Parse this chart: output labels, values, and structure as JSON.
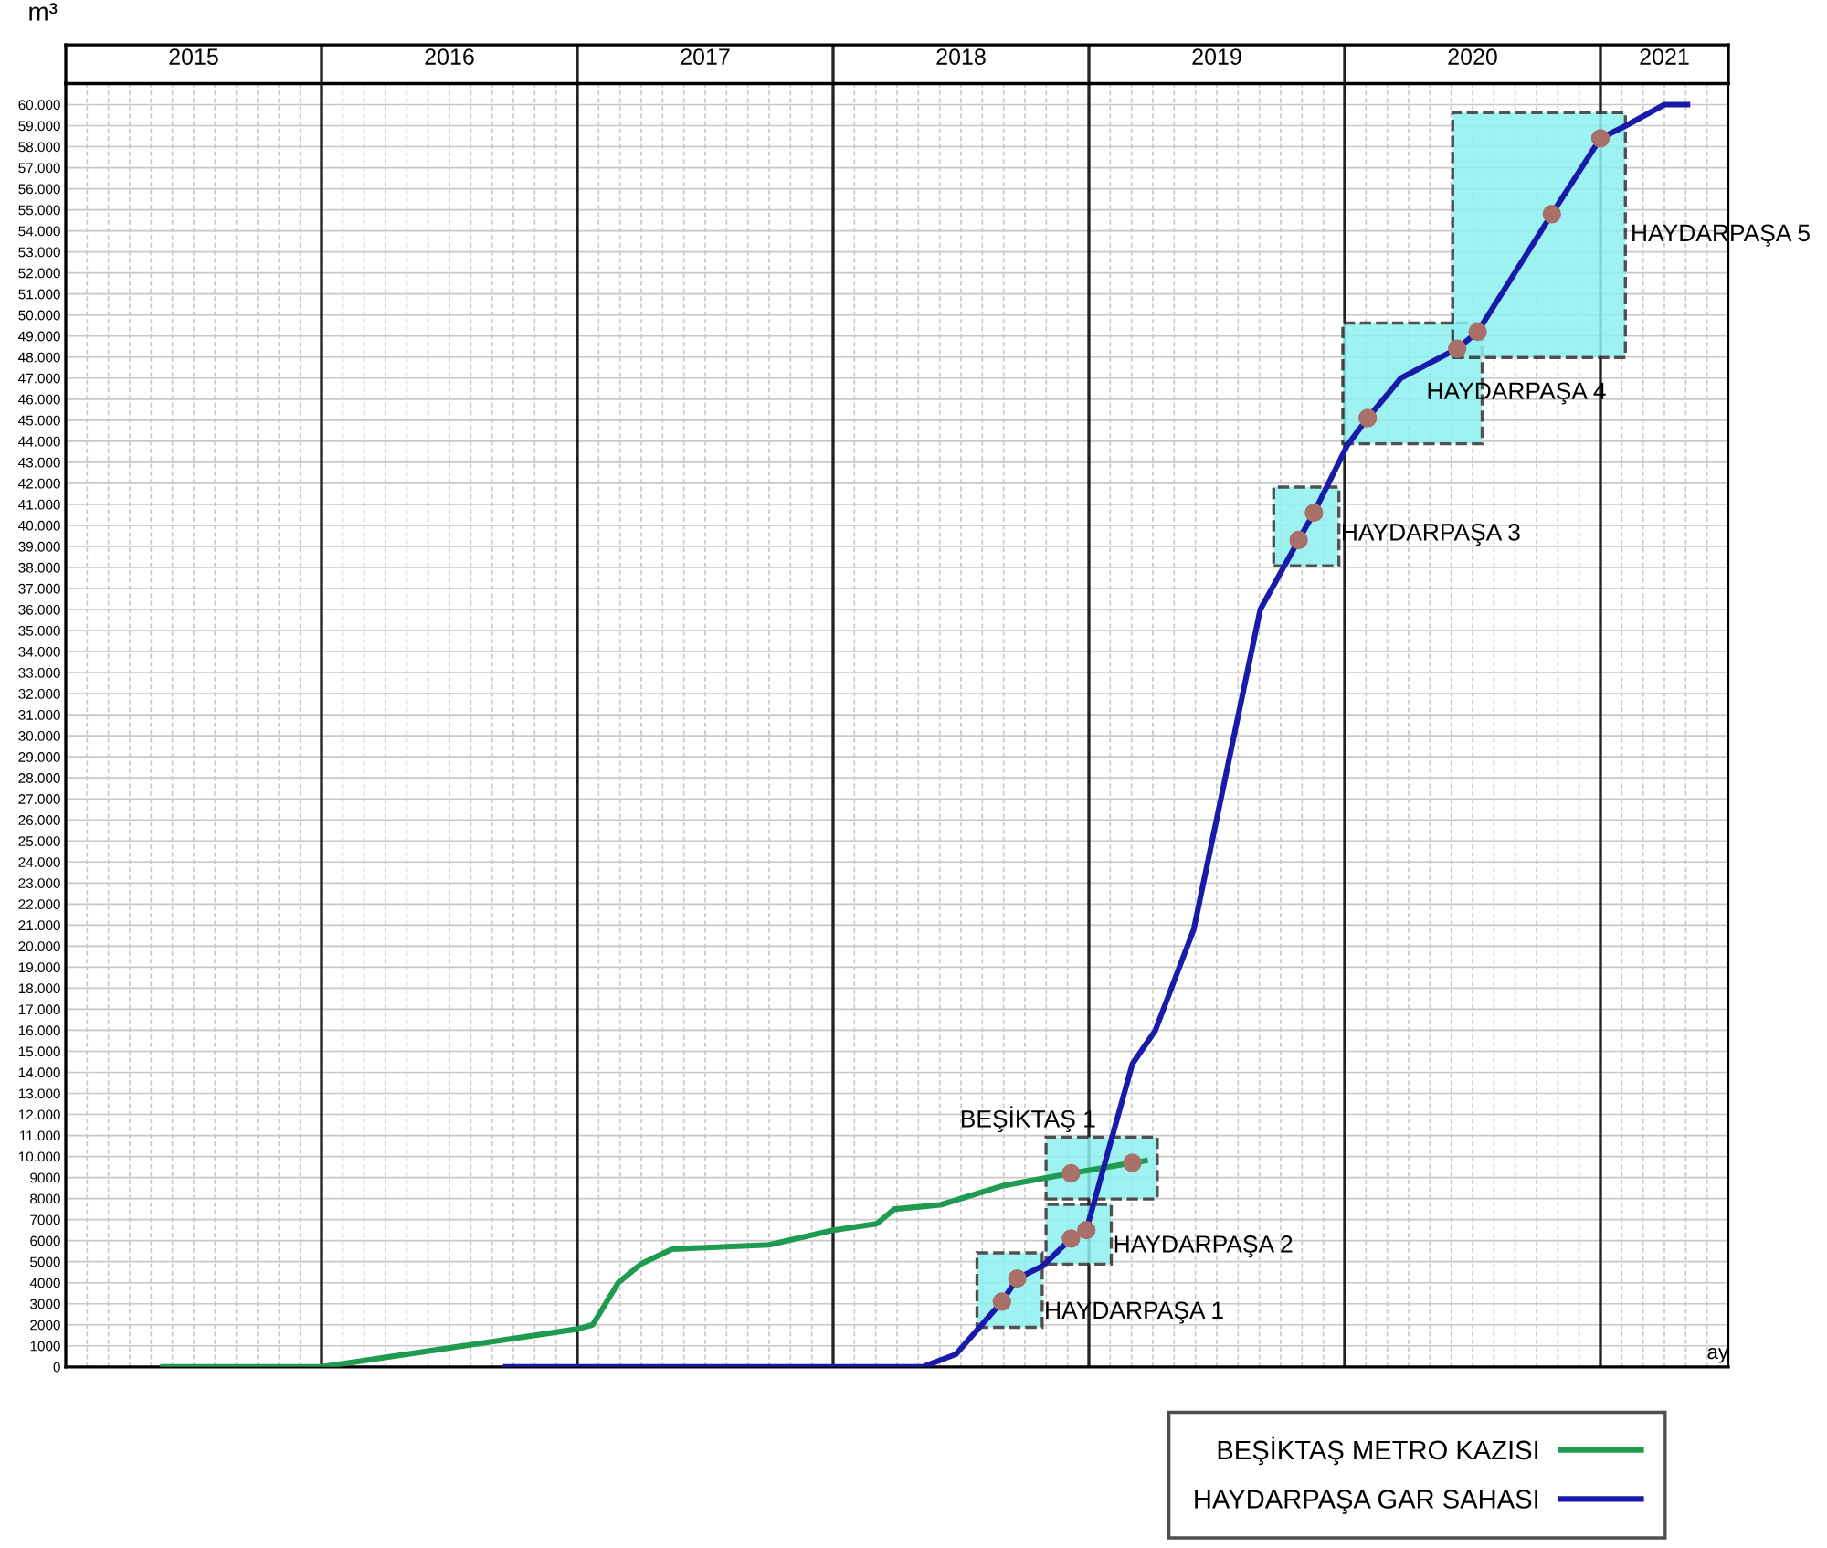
{
  "chart_data": {
    "type": "line",
    "xlabel": "ay",
    "ylabel": "m³",
    "xlim": [
      2015,
      2021.5
    ],
    "xticks": [
      {
        "value": 2015.5,
        "label": "2015"
      },
      {
        "value": 2016.5,
        "label": "2016"
      },
      {
        "value": 2017.5,
        "label": "2017"
      },
      {
        "value": 2018.5,
        "label": "2018"
      },
      {
        "value": 2019.5,
        "label": "2019"
      },
      {
        "value": 2020.5,
        "label": "2020"
      },
      {
        "value": 2021.25,
        "label": "2021"
      }
    ],
    "ylim": [
      0,
      61000
    ],
    "yticks": [
      0,
      1000,
      2000,
      3000,
      4000,
      5000,
      6000,
      7000,
      8000,
      9000,
      {
        "value": 10000,
        "label": "10.000"
      },
      {
        "value": 11000,
        "label": "11.000"
      },
      {
        "value": 12000,
        "label": "12.000"
      },
      {
        "value": 13000,
        "label": "13.000"
      },
      {
        "value": 14000,
        "label": "14.000"
      },
      {
        "value": 15000,
        "label": "15.000"
      },
      {
        "value": 16000,
        "label": "16.000"
      },
      {
        "value": 17000,
        "label": "17.000"
      },
      {
        "value": 18000,
        "label": "18.000"
      },
      {
        "value": 19000,
        "label": "19.000"
      },
      {
        "value": 20000,
        "label": "20.000"
      },
      {
        "value": 21000,
        "label": "21.000"
      },
      {
        "value": 22000,
        "label": "22.000"
      },
      {
        "value": 23000,
        "label": "23.000"
      },
      {
        "value": 24000,
        "label": "24.000"
      },
      {
        "value": 25000,
        "label": "25.000"
      },
      {
        "value": 26000,
        "label": "26.000"
      },
      {
        "value": 27000,
        "label": "27.000"
      },
      {
        "value": 28000,
        "label": "28.000"
      },
      {
        "value": 29000,
        "label": "29.000"
      },
      {
        "value": 30000,
        "label": "30.000"
      },
      {
        "value": 31000,
        "label": "31.000"
      },
      {
        "value": 32000,
        "label": "32.000"
      },
      {
        "value": 33000,
        "label": "33.000"
      },
      {
        "value": 34000,
        "label": "34.000"
      },
      {
        "value": 35000,
        "label": "35.000"
      },
      {
        "value": 36000,
        "label": "36.000"
      },
      {
        "value": 37000,
        "label": "37.000"
      },
      {
        "value": 38000,
        "label": "38.000"
      },
      {
        "value": 39000,
        "label": "39.000"
      },
      {
        "value": 40000,
        "label": "40.000"
      },
      {
        "value": 41000,
        "label": "41.000"
      },
      {
        "value": 42000,
        "label": "42.000"
      },
      {
        "value": 43000,
        "label": "43.000"
      },
      {
        "value": 44000,
        "label": "44.000"
      },
      {
        "value": 45000,
        "label": "45.000"
      },
      {
        "value": 46000,
        "label": "46.000"
      },
      {
        "value": 47000,
        "label": "47.000"
      },
      {
        "value": 48000,
        "label": "48.000"
      },
      {
        "value": 49000,
        "label": "49.000"
      },
      {
        "value": 50000,
        "label": "50.000"
      },
      {
        "value": 51000,
        "label": "51.000"
      },
      {
        "value": 52000,
        "label": "52.000"
      },
      {
        "value": 53000,
        "label": "53.000"
      },
      {
        "value": 54000,
        "label": "54.000"
      },
      {
        "value": 55000,
        "label": "55.000"
      },
      {
        "value": 56000,
        "label": "56.000"
      },
      {
        "value": 57000,
        "label": "57.000"
      },
      {
        "value": 58000,
        "label": "58.000"
      },
      {
        "value": 59000,
        "label": "59.000"
      },
      {
        "value": 60000,
        "label": "60.000"
      }
    ],
    "grid": true,
    "legend": "bottom right",
    "line_style": "solid",
    "ref_lines": [
      {
        "axis": "x",
        "value": 2016
      },
      {
        "axis": "x",
        "value": 2017
      },
      {
        "axis": "x",
        "value": 2018
      },
      {
        "axis": "x",
        "value": 2019
      },
      {
        "axis": "x",
        "value": 2020
      },
      {
        "axis": "x",
        "value": 2021
      }
    ],
    "series": [
      {
        "name": "BEŞİKTAŞ METRO KAZISI",
        "color": "#1e9b50",
        "x": [
          2015.38,
          2016.0,
          2017.0,
          2017.06,
          2017.16,
          2017.25,
          2017.37,
          2017.75,
          2018.0,
          2018.17,
          2018.24,
          2018.42,
          2018.66,
          2018.93,
          2019.17,
          2019.22
        ],
        "values": [
          0,
          0,
          1800,
          2000,
          4000,
          4900,
          5600,
          5800,
          6500,
          6800,
          7500,
          7700,
          8600,
          9200,
          9700,
          9800
        ]
      },
      {
        "name": "HAYDARPAŞA GAR SAHASI",
        "color": "#1a1aaa",
        "x": [
          2016.72,
          2018.35,
          2018.48,
          2018.66,
          2018.72,
          2018.82,
          2018.93,
          2018.99,
          2019.17,
          2019.26,
          2019.41,
          2019.67,
          2019.82,
          2019.88,
          2020.01,
          2020.09,
          2020.22,
          2020.44,
          2020.52,
          2020.81,
          2021.0,
          2021.1,
          2021.25,
          2021.34
        ],
        "values": [
          0,
          0,
          600,
          3100,
          4200,
          4800,
          6100,
          6500,
          14400,
          16000,
          20800,
          36000,
          39300,
          40600,
          43800,
          45100,
          47000,
          48400,
          49200,
          54800,
          58400,
          59000,
          60000,
          60000
        ]
      },
      {
        "type": "scatter",
        "color": "#a87068",
        "x": [
          2018.93,
          2019.17
        ],
        "values": [
          9200,
          9700
        ]
      },
      {
        "type": "scatter",
        "color": "#a87068",
        "x": [
          2018.66,
          2018.72
        ],
        "values": [
          3100,
          4200
        ]
      },
      {
        "type": "scatter",
        "color": "#a87068",
        "x": [
          2018.93,
          2018.99
        ],
        "values": [
          6100,
          6500
        ]
      },
      {
        "type": "scatter",
        "color": "#a87068",
        "x": [
          2019.82,
          2019.88
        ],
        "values": [
          39300,
          40600
        ]
      },
      {
        "type": "scatter",
        "color": "#a87068",
        "x": [
          2020.09,
          2020.44
        ],
        "values": [
          45100,
          48400
        ]
      },
      {
        "type": "scatter",
        "color": "#a87068",
        "x": [
          2020.52,
          2020.81,
          2021.0
        ],
        "values": [
          49200,
          54800,
          58400
        ]
      }
    ],
    "annotations": [
      "BEŞİKTAŞ 1",
      "HAYDARPAŞA 1",
      "HAYDARPAŞA 2",
      "HAYDARPAŞA 3",
      "HAYDARPAŞA 4",
      "HAYDARPAŞA 5"
    ]
  }
}
